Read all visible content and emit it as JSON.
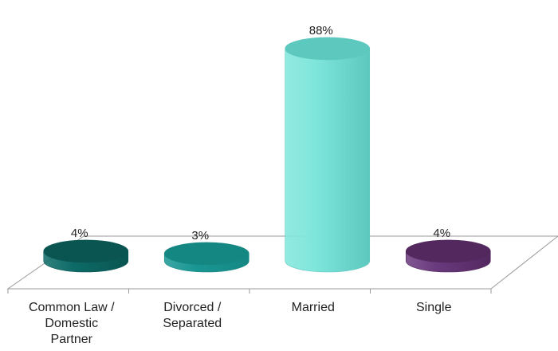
{
  "chart_data": {
    "type": "bar",
    "style": "3d-cylinder",
    "categories": [
      "Common Law / Domestic Partner",
      "Divorced / Separated",
      "Married",
      "Single"
    ],
    "category_lines": [
      [
        "Common Law /",
        "Domestic",
        "Partner"
      ],
      [
        "Divorced /",
        "Separated"
      ],
      [
        "Married"
      ],
      [
        "Single"
      ]
    ],
    "values": [
      4,
      3,
      88,
      4
    ],
    "value_labels": [
      "4%",
      "3%",
      "88%",
      "4%"
    ],
    "unit": "%",
    "ylim": [
      0,
      100
    ],
    "grid": false,
    "legend": "none",
    "colors": {
      "bars": [
        "#0d6b67",
        "#1a9793",
        "#7fe6dc",
        "#6a3a7e"
      ],
      "bar_tops": [
        "#0a5552",
        "#158783",
        "#5cc8be",
        "#53285f"
      ],
      "floor": "#9a9a9a"
    }
  }
}
